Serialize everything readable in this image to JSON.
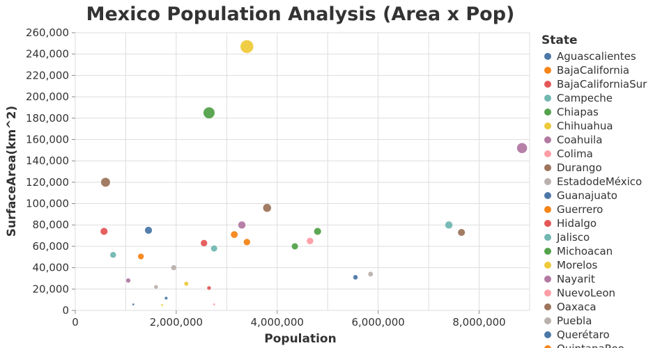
{
  "chart_data": {
    "type": "scatter",
    "title": "Mexico Population Analysis (Area x Pop)",
    "xlabel": "Population",
    "ylabel": "SurfaceArea(km^2)",
    "xlim": [
      0,
      9000000
    ],
    "ylim": [
      0,
      260000
    ],
    "x_ticks": [
      0,
      2000000,
      4000000,
      6000000,
      8000000
    ],
    "x_tick_labels": [
      "0",
      "2,000,000",
      "4,000,000",
      "6,000,000",
      "8,000,000"
    ],
    "y_ticks": [
      0,
      20000,
      40000,
      60000,
      80000,
      100000,
      120000,
      140000,
      160000,
      180000,
      200000,
      220000,
      240000,
      260000
    ],
    "y_tick_labels": [
      "0",
      "20,000",
      "40,000",
      "60,000",
      "80,000",
      "100,000",
      "120,000",
      "140,000",
      "160,000",
      "180,000",
      "200,000",
      "220,000",
      "240,000",
      "260,000"
    ],
    "grid": true,
    "legend_position": "right",
    "legend_title": "State",
    "size_encoding": "SurfaceArea",
    "legend": [
      {
        "label": "Aguascalientes",
        "color": "#4c78a8"
      },
      {
        "label": "BajaCalifornia",
        "color": "#f58518"
      },
      {
        "label": "BajaCaliforniaSur",
        "color": "#e45756"
      },
      {
        "label": "Campeche",
        "color": "#72b7b2"
      },
      {
        "label": "Chiapas",
        "color": "#54a24b"
      },
      {
        "label": "Chihuahua",
        "color": "#eeca3b"
      },
      {
        "label": "Coahuila",
        "color": "#b279a2"
      },
      {
        "label": "Colima",
        "color": "#ff9da6"
      },
      {
        "label": "Durango",
        "color": "#9d755d"
      },
      {
        "label": "EstadodeMéxico",
        "color": "#bab0ac"
      },
      {
        "label": "Guanajuato",
        "color": "#4c78a8"
      },
      {
        "label": "Guerrero",
        "color": "#f58518"
      },
      {
        "label": "Hidalgo",
        "color": "#e45756"
      },
      {
        "label": "Jalisco",
        "color": "#72b7b2"
      },
      {
        "label": "Michoacan",
        "color": "#54a24b"
      },
      {
        "label": "Morelos",
        "color": "#eeca3b"
      },
      {
        "label": "Nayarit",
        "color": "#b279a2"
      },
      {
        "label": "NuevoLeon",
        "color": "#ff9da6"
      },
      {
        "label": "Oaxaca",
        "color": "#9d755d"
      },
      {
        "label": "Puebla",
        "color": "#bab0ac"
      },
      {
        "label": "Querétaro",
        "color": "#4c78a8"
      },
      {
        "label": "QuintanaRoo",
        "color": "#f58518"
      }
    ],
    "points": [
      {
        "x": 3400000,
        "y": 247000,
        "color": "#eeca3b"
      },
      {
        "x": 2650000,
        "y": 185000,
        "color": "#54a24b"
      },
      {
        "x": 8850000,
        "y": 152000,
        "color": "#b279a2"
      },
      {
        "x": 600000,
        "y": 120000,
        "color": "#9d755d"
      },
      {
        "x": 3800000,
        "y": 96000,
        "color": "#9d755d"
      },
      {
        "x": 570000,
        "y": 74000,
        "color": "#e45756"
      },
      {
        "x": 1450000,
        "y": 75000,
        "color": "#4c78a8"
      },
      {
        "x": 3300000,
        "y": 80000,
        "color": "#b279a2"
      },
      {
        "x": 3150000,
        "y": 71000,
        "color": "#f58518"
      },
      {
        "x": 7400000,
        "y": 80000,
        "color": "#72b7b2"
      },
      {
        "x": 7650000,
        "y": 73000,
        "color": "#9d755d"
      },
      {
        "x": 4800000,
        "y": 74000,
        "color": "#54a24b"
      },
      {
        "x": 2550000,
        "y": 63000,
        "color": "#e45756"
      },
      {
        "x": 3400000,
        "y": 64000,
        "color": "#f58518"
      },
      {
        "x": 2750000,
        "y": 58000,
        "color": "#72b7b2"
      },
      {
        "x": 4350000,
        "y": 60000,
        "color": "#54a24b"
      },
      {
        "x": 4650000,
        "y": 65000,
        "color": "#ff9da6"
      },
      {
        "x": 750000,
        "y": 52000,
        "color": "#72b7b2"
      },
      {
        "x": 1300000,
        "y": 50500,
        "color": "#f58518"
      },
      {
        "x": 1950000,
        "y": 40000,
        "color": "#bab0ac"
      },
      {
        "x": 1050000,
        "y": 28000,
        "color": "#b279a2"
      },
      {
        "x": 1600000,
        "y": 22000,
        "color": "#bab0ac"
      },
      {
        "x": 2200000,
        "y": 25000,
        "color": "#eeca3b"
      },
      {
        "x": 2650000,
        "y": 21000,
        "color": "#e45756"
      },
      {
        "x": 5550000,
        "y": 31000,
        "color": "#4c78a8"
      },
      {
        "x": 5850000,
        "y": 34000,
        "color": "#bab0ac"
      },
      {
        "x": 1800000,
        "y": 11500,
        "color": "#4c78a8"
      },
      {
        "x": 1150000,
        "y": 5600,
        "color": "#4c78a8"
      },
      {
        "x": 1720000,
        "y": 5000,
        "color": "#eeca3b"
      },
      {
        "x": 2750000,
        "y": 5600,
        "color": "#ff9da6"
      }
    ]
  }
}
